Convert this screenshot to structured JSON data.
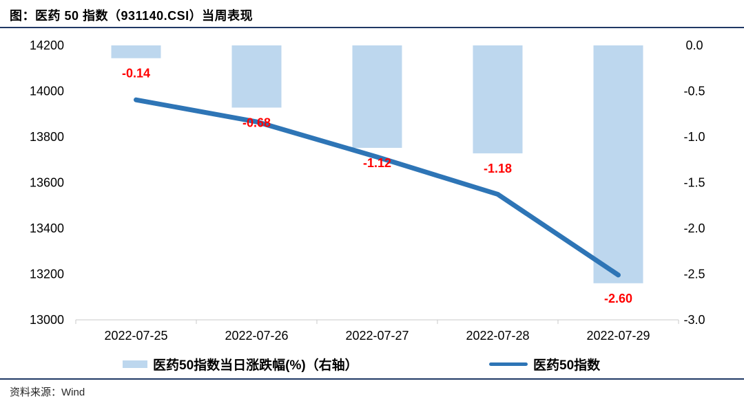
{
  "title": "图：医药 50 指数（931140.CSI）当周表现",
  "source": "资料来源：Wind",
  "legend": {
    "bar_label": "医药50指数当日涨跌幅(%)（右轴）",
    "line_label": "医药50指数"
  },
  "colors": {
    "bar_fill": "#BDD7EE",
    "line": "#2E75B6",
    "data_label": "#FF0000",
    "divider": "#1F3864",
    "axis_line": "#C9C9C9",
    "axis_text": "#000000",
    "source_text": "#262626"
  },
  "chart_data": {
    "type": "bar+line",
    "categories": [
      "2022-07-25",
      "2022-07-26",
      "2022-07-27",
      "2022-07-28",
      "2022-07-29"
    ],
    "series": [
      {
        "name": "医药50指数当日涨跌幅(%)（右轴）",
        "type": "bar",
        "axis": "right",
        "values": [
          -0.14,
          -0.68,
          -1.12,
          -1.18,
          -2.6
        ],
        "data_labels": [
          "-0.14",
          "-0.68",
          "-1.12",
          "-1.18",
          "-2.60"
        ]
      },
      {
        "name": "医药50指数",
        "type": "line",
        "axis": "left",
        "values": [
          13962,
          13866,
          13712,
          13549,
          13196
        ]
      }
    ],
    "left_axis": {
      "min": 13000,
      "max": 14200,
      "tick_labels": [
        "14200",
        "14000",
        "13800",
        "13600",
        "13400",
        "13200",
        "13000"
      ]
    },
    "right_axis": {
      "min": -3.0,
      "max": 0.0,
      "tick_labels": [
        "0.0",
        "-0.5",
        "-1.0",
        "-1.5",
        "-2.0",
        "-2.5",
        "-3.0"
      ]
    },
    "grid": false,
    "legend_position": "bottom"
  }
}
